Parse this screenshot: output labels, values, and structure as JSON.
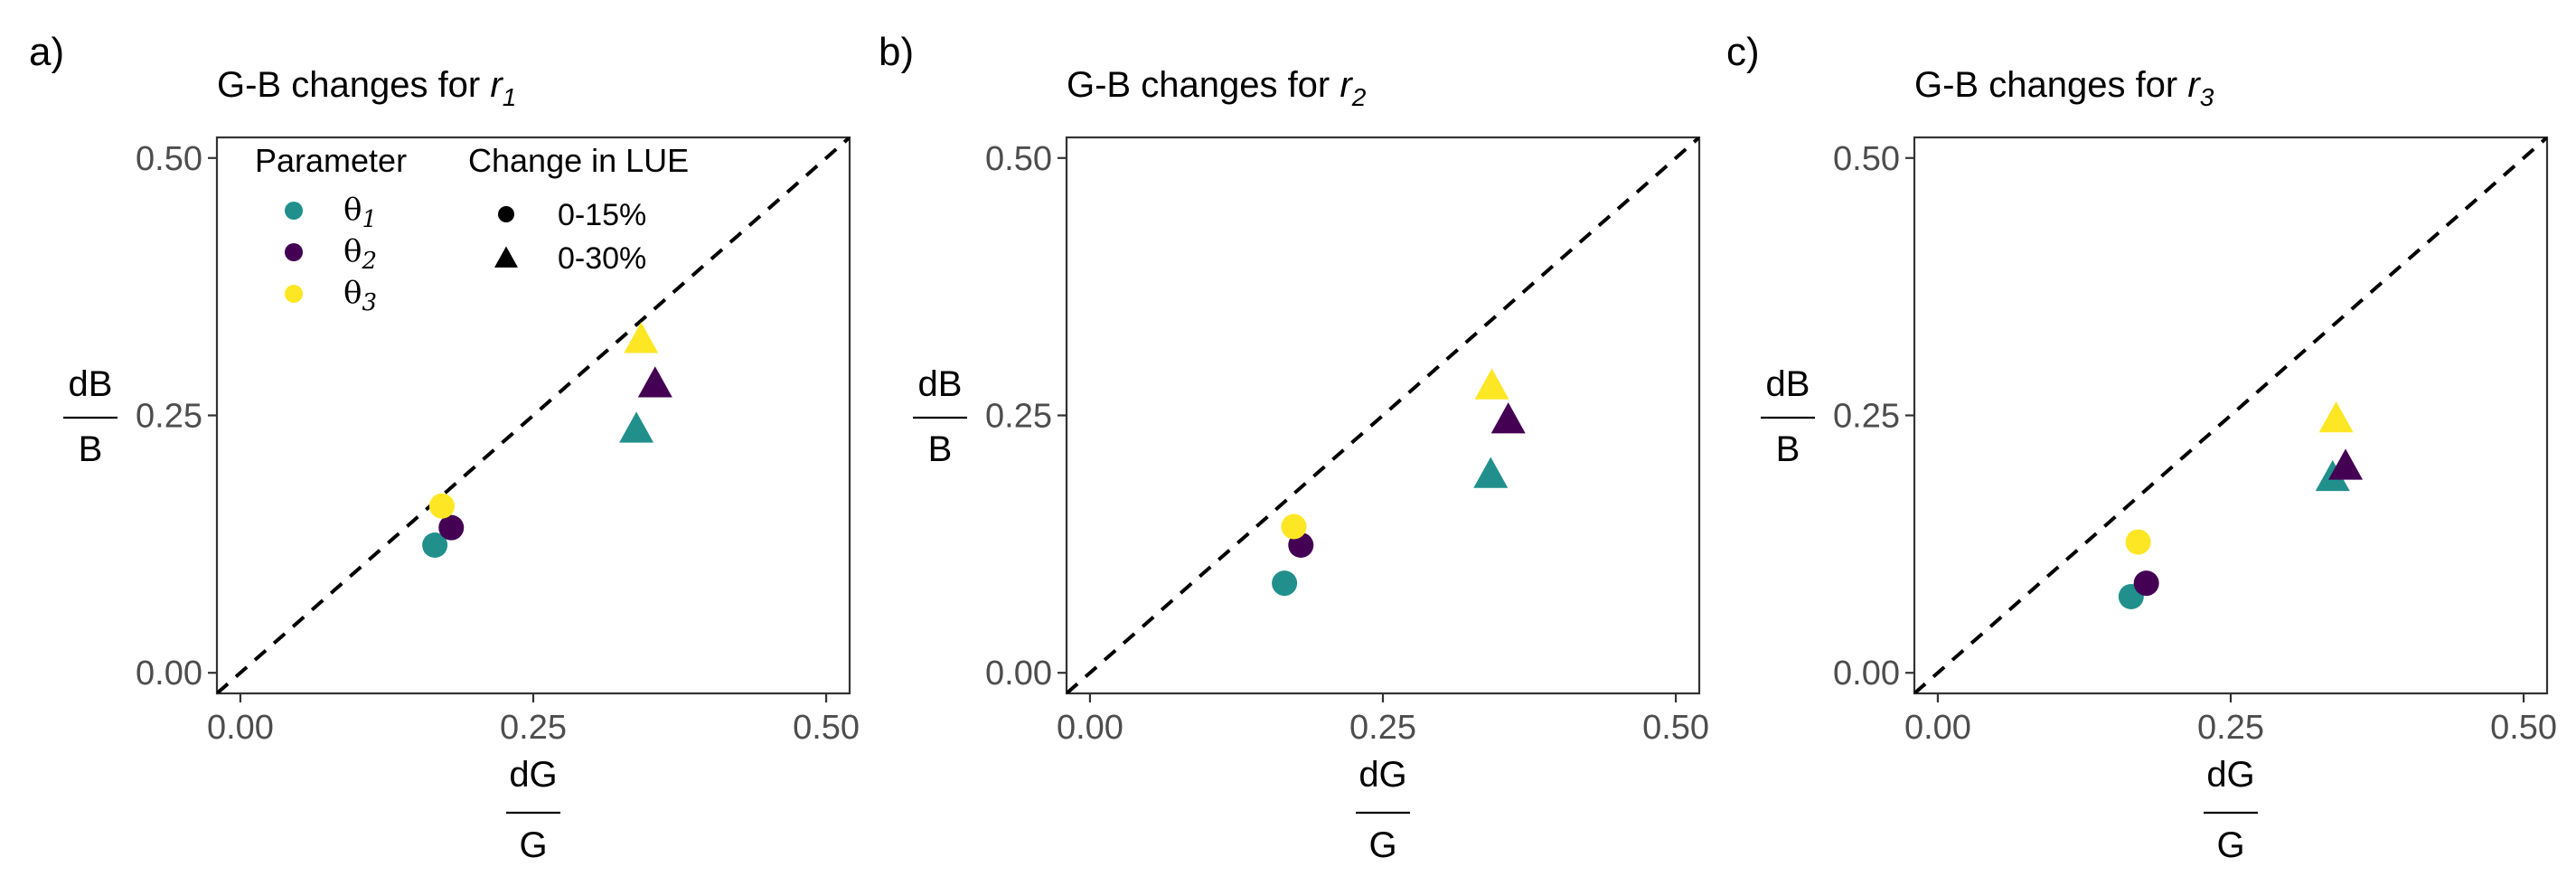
{
  "chart_data": [
    {
      "type": "scatter",
      "panel_label": "a)",
      "title": "G-B changes for ",
      "title_var": "r",
      "title_sub": "1",
      "xlabel": {
        "num": "dG",
        "den": "G"
      },
      "ylabel": {
        "num": "dB",
        "den": "B"
      },
      "xlim": [
        -0.02,
        0.52
      ],
      "ylim": [
        -0.02,
        0.52
      ],
      "x_ticks": [
        "0.00",
        "0.25",
        "0.50"
      ],
      "y_ticks": [
        "0.00",
        "0.25",
        "0.50"
      ],
      "grid": false,
      "reference_line": {
        "slope": 1,
        "intercept": 0,
        "style": "dashed"
      },
      "legend_position": "top-left",
      "points": [
        {
          "param": "theta1",
          "change": "0-15%",
          "x": 0.166,
          "y": 0.124
        },
        {
          "param": "theta2",
          "change": "0-15%",
          "x": 0.18,
          "y": 0.141
        },
        {
          "param": "theta3",
          "change": "0-15%",
          "x": 0.172,
          "y": 0.162
        },
        {
          "param": "theta1",
          "change": "0-30%",
          "x": 0.338,
          "y": 0.235
        },
        {
          "param": "theta2",
          "change": "0-30%",
          "x": 0.354,
          "y": 0.279
        },
        {
          "param": "theta3",
          "change": "0-30%",
          "x": 0.342,
          "y": 0.322
        }
      ]
    },
    {
      "type": "scatter",
      "panel_label": "b)",
      "title": "G-B changes for ",
      "title_var": "r",
      "title_sub": "2",
      "xlabel": {
        "num": "dG",
        "den": "G"
      },
      "ylabel": {
        "num": "dB",
        "den": "B"
      },
      "xlim": [
        -0.02,
        0.52
      ],
      "ylim": [
        -0.02,
        0.52
      ],
      "x_ticks": [
        "0.00",
        "0.25",
        "0.50"
      ],
      "y_ticks": [
        "0.00",
        "0.25",
        "0.50"
      ],
      "grid": false,
      "reference_line": {
        "slope": 1,
        "intercept": 0,
        "style": "dashed"
      },
      "points": [
        {
          "param": "theta1",
          "change": "0-15%",
          "x": 0.166,
          "y": 0.087
        },
        {
          "param": "theta2",
          "change": "0-15%",
          "x": 0.18,
          "y": 0.124
        },
        {
          "param": "theta3",
          "change": "0-15%",
          "x": 0.174,
          "y": 0.142
        },
        {
          "param": "theta1",
          "change": "0-30%",
          "x": 0.342,
          "y": 0.191
        },
        {
          "param": "theta2",
          "change": "0-30%",
          "x": 0.357,
          "y": 0.244
        },
        {
          "param": "theta3",
          "change": "0-30%",
          "x": 0.343,
          "y": 0.277
        }
      ]
    },
    {
      "type": "scatter",
      "panel_label": "c)",
      "title": "G-B changes for ",
      "title_var": "r",
      "title_sub": "3",
      "xlabel": {
        "num": "dG",
        "den": "G"
      },
      "ylabel": {
        "num": "dB",
        "den": "B"
      },
      "xlim": [
        -0.02,
        0.52
      ],
      "ylim": [
        -0.02,
        0.52
      ],
      "x_ticks": [
        "0.00",
        "0.25",
        "0.50"
      ],
      "y_ticks": [
        "0.00",
        "0.25",
        "0.50"
      ],
      "grid": false,
      "reference_line": {
        "slope": 1,
        "intercept": 0,
        "style": "dashed"
      },
      "points": [
        {
          "param": "theta1",
          "change": "0-15%",
          "x": 0.165,
          "y": 0.074
        },
        {
          "param": "theta2",
          "change": "0-15%",
          "x": 0.178,
          "y": 0.087
        },
        {
          "param": "theta3",
          "change": "0-15%",
          "x": 0.171,
          "y": 0.127
        },
        {
          "param": "theta1",
          "change": "0-30%",
          "x": 0.337,
          "y": 0.188
        },
        {
          "param": "theta2",
          "change": "0-30%",
          "x": 0.348,
          "y": 0.199
        },
        {
          "param": "theta3",
          "change": "0-30%",
          "x": 0.34,
          "y": 0.245
        }
      ]
    }
  ],
  "legend": {
    "color_title": "Parameter",
    "shape_title": "Change in LUE",
    "color_entries": [
      {
        "key": "theta1",
        "symbol": "θ",
        "sub": "1",
        "color": "#21908C"
      },
      {
        "key": "theta2",
        "symbol": "θ",
        "sub": "2",
        "color": "#440154"
      },
      {
        "key": "theta3",
        "symbol": "θ",
        "sub": "3",
        "color": "#FDE725"
      }
    ],
    "shape_entries": [
      {
        "key": "0-15%",
        "label": "0-15%",
        "shape": "circle"
      },
      {
        "key": "0-30%",
        "label": "0-30%",
        "shape": "triangle"
      }
    ]
  }
}
